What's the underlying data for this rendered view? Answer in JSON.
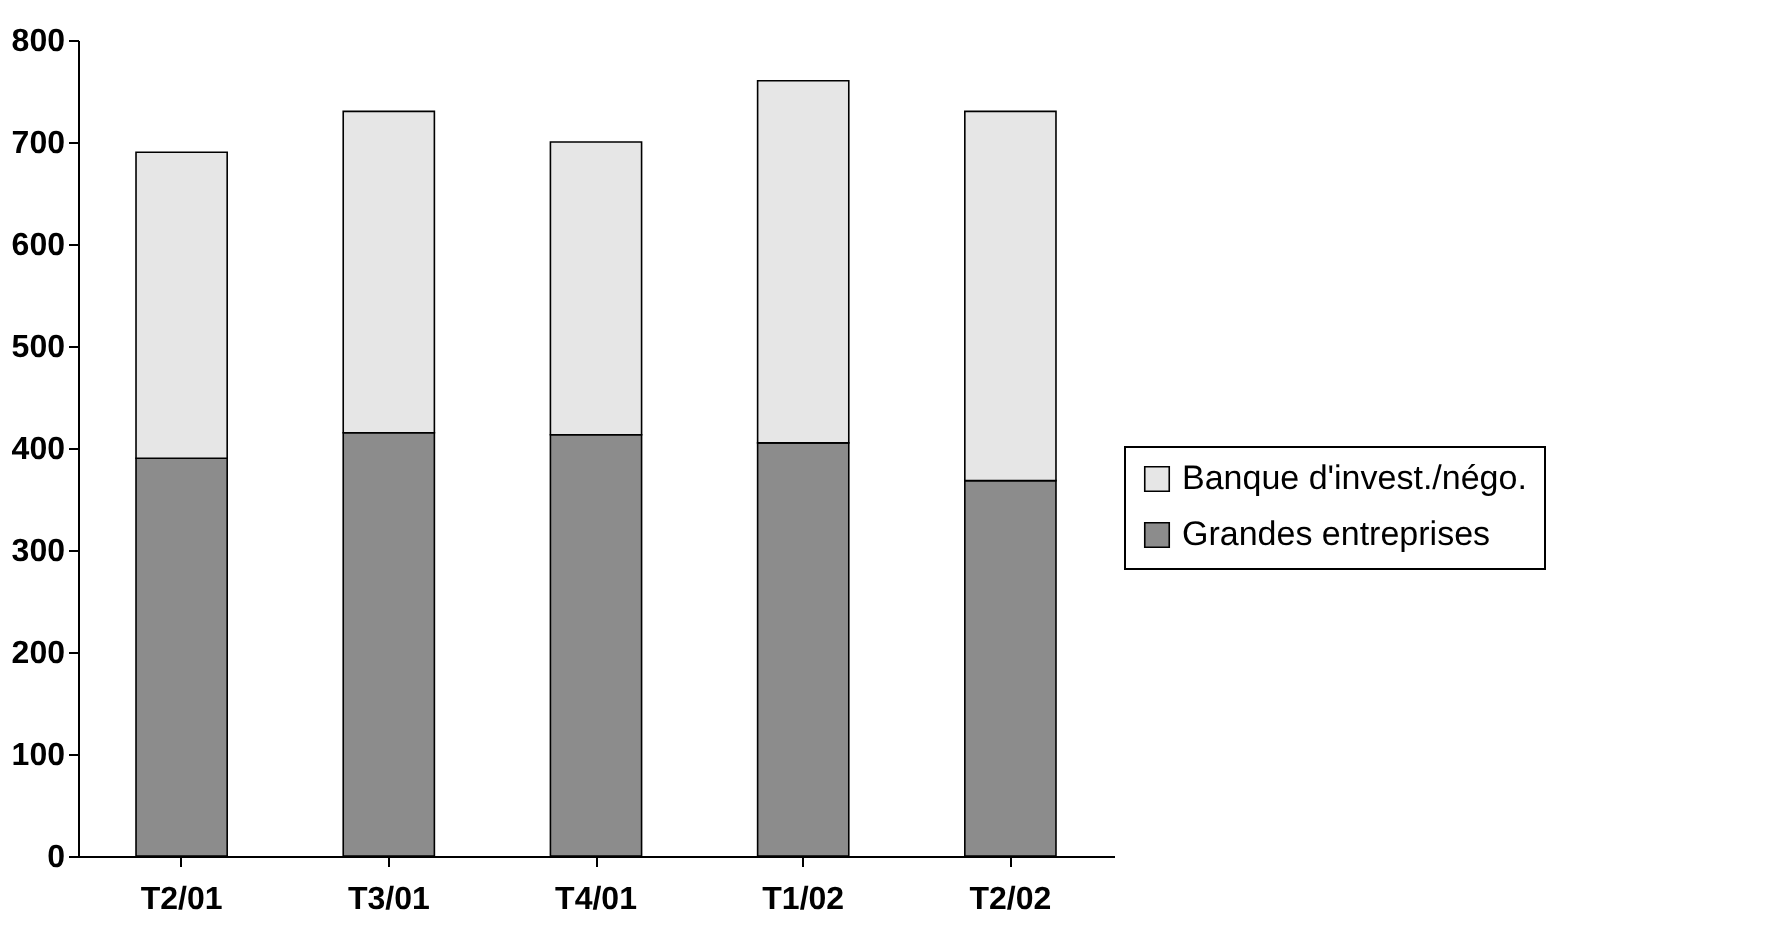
{
  "chart_data": {
    "type": "bar",
    "stacked": true,
    "categories": [
      "T2/01",
      "T3/01",
      "T4/01",
      "T1/02",
      "T2/02"
    ],
    "series": [
      {
        "name": "Grandes entreprises",
        "color": "#8c8c8c",
        "values": [
          390,
          415,
          413,
          405,
          368
        ]
      },
      {
        "name": "Banque d'invest./négo.",
        "color": "#e6e6e6",
        "values": [
          300,
          315,
          287,
          355,
          362
        ]
      }
    ],
    "ylim": [
      0,
      800
    ],
    "yticks": [
      0,
      100,
      200,
      300,
      400,
      500,
      600,
      700,
      800
    ],
    "grid": false,
    "legend": "right"
  }
}
